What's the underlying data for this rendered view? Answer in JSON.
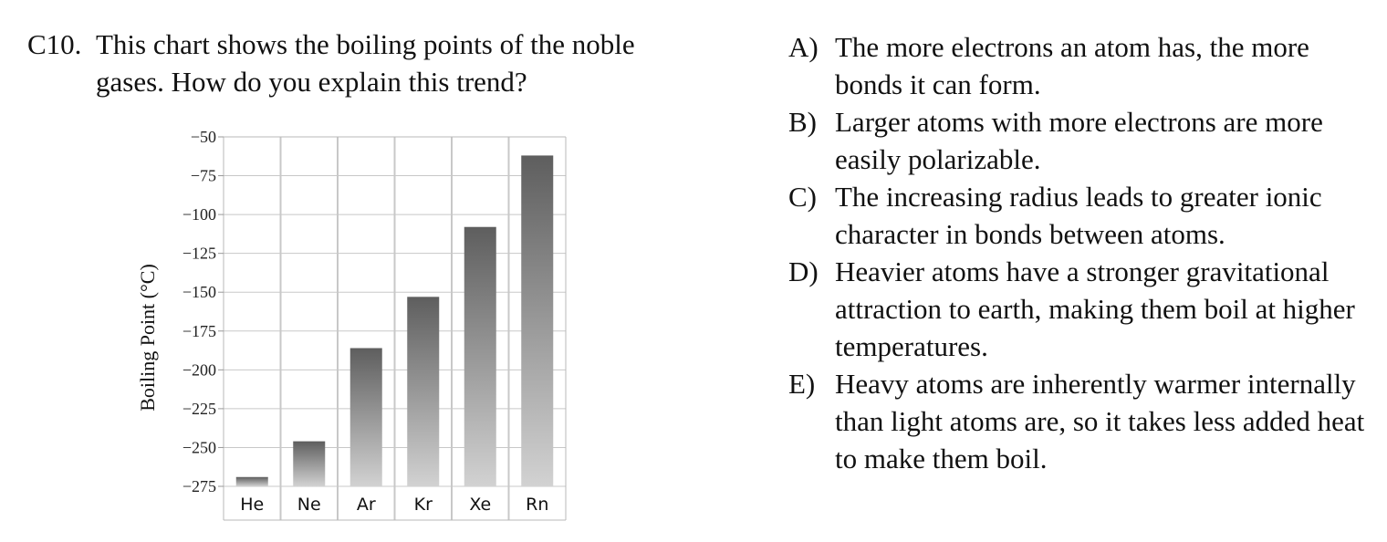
{
  "question": {
    "number": "C10.",
    "text": "This chart shows the boiling points of the noble gases. How do you explain this trend?"
  },
  "answers": [
    {
      "letter": "A)",
      "text": "The more electrons an atom has, the more bonds it can form."
    },
    {
      "letter": "B)",
      "text": "Larger atoms with more electrons are more easily polarizable."
    },
    {
      "letter": "C)",
      "text": "The increasing radius leads to greater ionic character in bonds between atoms."
    },
    {
      "letter": "D)",
      "text": "Heavier atoms have a stronger gravitational attraction to earth, making them boil at higher temperatures."
    },
    {
      "letter": "E)",
      "text": "Heavy atoms are inherently warmer internally than light atoms are, so it takes less added heat to make them boil."
    }
  ],
  "chart_data": {
    "type": "bar",
    "title": "",
    "xlabel": "",
    "ylabel": "Boiling Point (°C)",
    "categories": [
      "He",
      "Ne",
      "Ar",
      "Kr",
      "Xe",
      "Rn"
    ],
    "values": [
      -269,
      -246,
      -186,
      -153,
      -108,
      -62
    ],
    "ylim": [
      -275,
      -50
    ],
    "yticks": [
      -50,
      -75,
      -100,
      -125,
      -150,
      -175,
      -200,
      -225,
      -250,
      -275
    ],
    "ytick_labels": [
      "−50",
      "−75",
      "−100",
      "−125",
      "−150",
      "−175",
      "−200",
      "−225",
      "−250",
      "−275"
    ],
    "grid": true,
    "colors": {
      "bar_top": "#5e5e5e",
      "bar_bottom": "#d2d2d2",
      "grid": "#c8c8c8",
      "frame": "#b8b8b8"
    }
  }
}
